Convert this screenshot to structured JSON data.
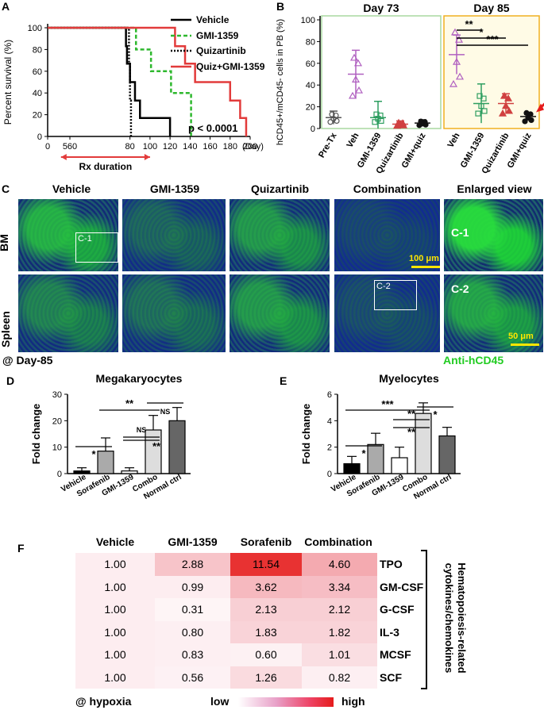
{
  "panelA": {
    "label": "A",
    "ylabel": "Percent survival (%)",
    "xlabel": "(Day)",
    "xticks": [
      "0",
      "560",
      "80",
      "100",
      "120",
      "140",
      "160",
      "180",
      "200"
    ],
    "yticks": [
      "0",
      "20",
      "40",
      "60",
      "80",
      "100"
    ],
    "legend": [
      "Vehicle",
      "GMI-1359",
      "Quizartinib",
      "Quiz+GMI-1359"
    ],
    "pvalue": "p < 0.0001",
    "rx_label": "Rx duration",
    "colors": {
      "vehicle": "#000000",
      "gmi": "#2eb82e",
      "quiz": "#000000",
      "combo": "#e23b3b"
    }
  },
  "panelB": {
    "label": "B",
    "ylabel": "hCD45+/mCD45- cells in PB (%)",
    "yticks": [
      "0",
      "20",
      "40",
      "60",
      "80",
      "100"
    ],
    "day73": "Day 73",
    "day85": "Day 85",
    "groups73": [
      "Pre-Tx",
      "Veh",
      "GMI-1359",
      "Quizartinib",
      "GMI+quiz"
    ],
    "groups85": [
      "Veh",
      "GMI-1359",
      "Quizartinib",
      "GMI+quiz"
    ],
    "sig": [
      "**",
      "*",
      "***"
    ],
    "means73": [
      10,
      50,
      10,
      4,
      5
    ],
    "means85": [
      68,
      23,
      23,
      11
    ]
  },
  "panelC": {
    "label": "C",
    "columns": [
      "Vehicle",
      "GMI-1359",
      "Quizartinib",
      "Combination",
      "Enlarged view"
    ],
    "rows": [
      "BM",
      "Spleen"
    ],
    "box1": "C-1",
    "box2": "C-2",
    "scale1": "100 μm",
    "scale2": "50 μm",
    "day": "@ Day-85",
    "stain": "Anti-hCD45"
  },
  "panelD": {
    "label": "D",
    "chart_data": {
      "type": "bar",
      "title": "Megakaryocytes",
      "ylabel": "Fold change",
      "categories": [
        "Vehicle",
        "Sorafenib",
        "GMI-1359",
        "Combo",
        "Normal ctrl"
      ],
      "values": [
        1,
        8.5,
        1,
        16.5,
        20
      ],
      "errors": [
        1.2,
        5,
        1.2,
        5.5,
        5
      ],
      "ylim": [
        0,
        30
      ],
      "yticks": [
        "0",
        "10",
        "20",
        "30"
      ],
      "sig": [
        "*",
        "**",
        "NS",
        "**",
        "NS"
      ]
    }
  },
  "panelE": {
    "label": "E",
    "chart_data": {
      "type": "bar",
      "title": "Myelocytes",
      "ylabel": "Fold change",
      "categories": [
        "Vehicle",
        "Sorafenib",
        "GMI-1359",
        "Combo",
        "Normal ctrl"
      ],
      "values": [
        0.75,
        2.2,
        1.2,
        4.55,
        2.85
      ],
      "errors": [
        0.55,
        0.85,
        0.8,
        0.8,
        0.65
      ],
      "ylim": [
        0,
        6
      ],
      "yticks": [
        "0",
        "2",
        "4",
        "6"
      ],
      "sig": [
        "*",
        "***",
        "**",
        "**",
        "*"
      ]
    }
  },
  "panelF": {
    "label": "F",
    "chart_data": {
      "type": "heatmap",
      "columns": [
        "Vehicle",
        "GMI-1359",
        "Sorafenib",
        "Combination"
      ],
      "rows": [
        "TPO",
        "GM-CSF",
        "G-CSF",
        "IL-3",
        "MCSF",
        "SCF"
      ],
      "values": [
        [
          "1.00",
          "2.88",
          "11.54",
          "4.60"
        ],
        [
          "1.00",
          "0.99",
          "3.62",
          "3.34"
        ],
        [
          "1.00",
          "0.31",
          "2.13",
          "2.12"
        ],
        [
          "1.00",
          "0.80",
          "1.83",
          "1.82"
        ],
        [
          "1.00",
          "0.83",
          "0.60",
          "1.01"
        ],
        [
          "1.00",
          "0.56",
          "1.26",
          "0.82"
        ]
      ]
    },
    "group_label": "Hematopoiesis-related cytokines/chemokines",
    "hypoxia": "@ hypoxia",
    "low": "low",
    "high": "high"
  }
}
